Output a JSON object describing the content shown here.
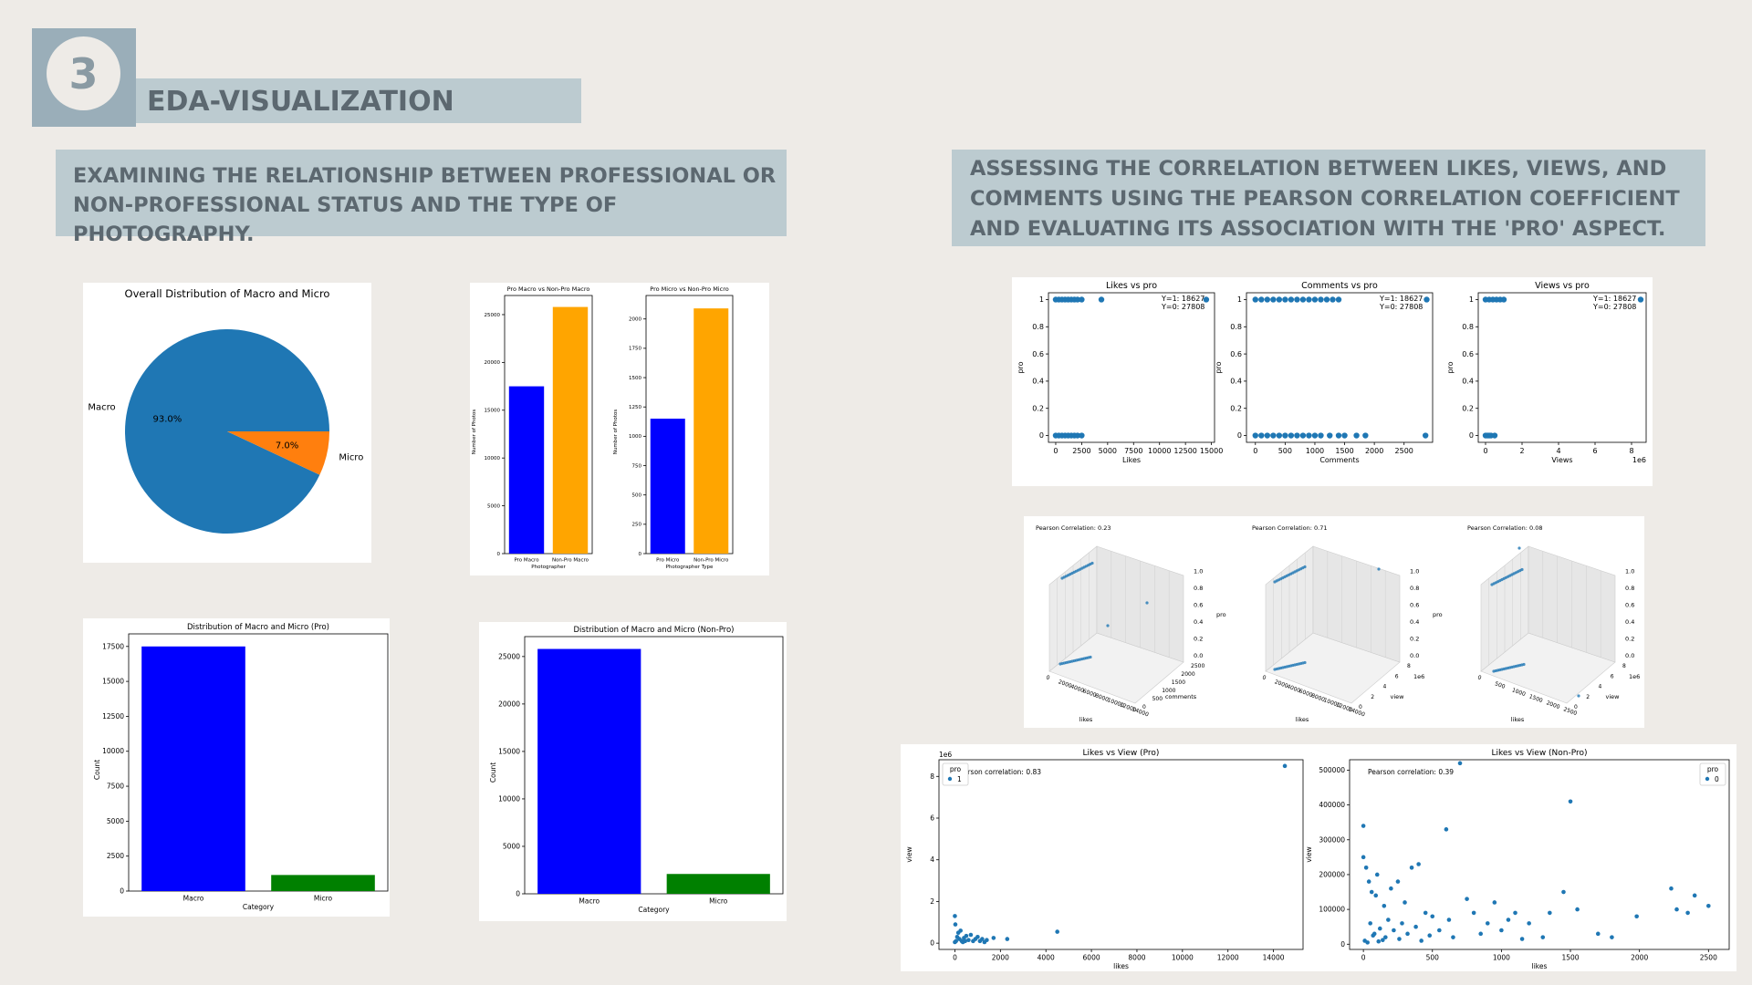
{
  "slide": {
    "number": "3",
    "title": "EDA-VISUALIZATION",
    "section_left": "EXAMINING THE RELATIONSHIP BETWEEN PROFESSIONAL OR NON-PROFESSIONAL STATUS AND THE TYPE OF PHOTOGRAPHY.",
    "section_right": "ASSESSING THE CORRELATION BETWEEN LIKES, VIEWS, AND COMMENTS USING THE PEARSON CORRELATION COEFFICIENT AND EVALUATING ITS ASSOCIATION WITH THE 'PRO' ASPECT."
  },
  "colors": {
    "blue": "#0000ff",
    "orange": "#ffa500",
    "green": "#008000",
    "mpl_blue": "#1f77b4",
    "mpl_orange": "#ff7f0e"
  },
  "chart_data": [
    {
      "id": "pie",
      "type": "pie",
      "title": "Overall Distribution of Macro and Micro",
      "labels": [
        "Macro",
        "Micro"
      ],
      "values": [
        93.0,
        7.0
      ],
      "pct_labels": [
        "93.0%",
        "7.0%"
      ],
      "colors": [
        "#1f77b4",
        "#ff7f0e"
      ]
    },
    {
      "id": "pro-macro",
      "type": "bar",
      "title": "Pro Macro vs Non-Pro Macro",
      "categories": [
        "Pro Macro",
        "Non-Pro Macro"
      ],
      "values": [
        17500,
        25800
      ],
      "colors": [
        "#0000ff",
        "#ffa500"
      ],
      "xlabel": "Photographer",
      "ylabel": "Number of Photos",
      "ylim": [
        0,
        27000
      ],
      "yticks": [
        0,
        5000,
        10000,
        15000,
        20000,
        25000
      ]
    },
    {
      "id": "pro-micro",
      "type": "bar",
      "title": "Pro Micro vs Non-Pro Micro",
      "categories": [
        "Pro Micro",
        "Non-Pro Micro"
      ],
      "values": [
        1150,
        2090
      ],
      "colors": [
        "#0000ff",
        "#ffa500"
      ],
      "xlabel": "Photographer Type",
      "ylabel": "Number of Photos",
      "ylim": [
        0,
        2200
      ],
      "yticks": [
        0,
        250,
        500,
        750,
        1000,
        1250,
        1500,
        1750,
        2000
      ]
    },
    {
      "id": "dist-pro",
      "type": "bar",
      "title": "Distribution of Macro and Micro (Pro)",
      "categories": [
        "Macro",
        "Micro"
      ],
      "values": [
        17500,
        1150
      ],
      "colors": [
        "#0000ff",
        "#008000"
      ],
      "xlabel": "Category",
      "ylabel": "Count",
      "ylim": [
        0,
        18400
      ],
      "yticks": [
        0,
        2500,
        5000,
        7500,
        10000,
        12500,
        15000,
        17500
      ]
    },
    {
      "id": "dist-nonpro",
      "type": "bar",
      "title": "Distribution of Macro and Micro (Non-Pro)",
      "categories": [
        "Macro",
        "Micro"
      ],
      "values": [
        25800,
        2090
      ],
      "colors": [
        "#0000ff",
        "#008000"
      ],
      "xlabel": "Category",
      "ylabel": "Count",
      "ylim": [
        0,
        27100
      ],
      "yticks": [
        0,
        5000,
        10000,
        15000,
        20000,
        25000
      ]
    },
    {
      "id": "likes-pro",
      "type": "scatter",
      "title": "Likes vs pro",
      "xlabel": "Likes",
      "ylabel": "pro",
      "xlim": [
        -700,
        15300
      ],
      "ylim": [
        -0.05,
        1.05
      ],
      "xticks": [
        0,
        2500,
        5000,
        7500,
        10000,
        12500,
        15000
      ],
      "yticks": [
        0.0,
        0.2,
        0.4,
        0.6,
        0.8,
        1.0
      ],
      "annotation": [
        "Y=1: 18627",
        "Y=0: 27808"
      ],
      "points": [
        [
          0,
          1
        ],
        [
          300,
          1
        ],
        [
          600,
          1
        ],
        [
          900,
          1
        ],
        [
          1200,
          1
        ],
        [
          1500,
          1
        ],
        [
          1800,
          1
        ],
        [
          2100,
          1
        ],
        [
          2500,
          1
        ],
        [
          4400,
          1
        ],
        [
          14500,
          1
        ],
        [
          0,
          0
        ],
        [
          300,
          0
        ],
        [
          600,
          0
        ],
        [
          900,
          0
        ],
        [
          1200,
          0
        ],
        [
          1500,
          0
        ],
        [
          1800,
          0
        ],
        [
          2100,
          0
        ],
        [
          2500,
          0
        ]
      ]
    },
    {
      "id": "comments-pro",
      "type": "scatter",
      "title": "Comments vs pro",
      "xlabel": "Comments",
      "ylabel": "pro",
      "xlim": [
        -150,
        2980
      ],
      "ylim": [
        -0.05,
        1.05
      ],
      "xticks": [
        0,
        500,
        1000,
        1500,
        2000,
        2500
      ],
      "yticks": [
        0.0,
        0.2,
        0.4,
        0.6,
        0.8,
        1.0
      ],
      "annotation": [
        "Y=1: 18627",
        "Y=0: 27808"
      ],
      "points": [
        [
          0,
          1
        ],
        [
          100,
          1
        ],
        [
          200,
          1
        ],
        [
          300,
          1
        ],
        [
          400,
          1
        ],
        [
          500,
          1
        ],
        [
          600,
          1
        ],
        [
          700,
          1
        ],
        [
          800,
          1
        ],
        [
          900,
          1
        ],
        [
          1000,
          1
        ],
        [
          1100,
          1
        ],
        [
          1200,
          1
        ],
        [
          1300,
          1
        ],
        [
          1400,
          1
        ],
        [
          2880,
          1
        ],
        [
          0,
          0
        ],
        [
          100,
          0
        ],
        [
          200,
          0
        ],
        [
          300,
          0
        ],
        [
          400,
          0
        ],
        [
          500,
          0
        ],
        [
          600,
          0
        ],
        [
          700,
          0
        ],
        [
          800,
          0
        ],
        [
          900,
          0
        ],
        [
          1000,
          0
        ],
        [
          1100,
          0
        ],
        [
          1250,
          0
        ],
        [
          1400,
          0
        ],
        [
          1500,
          0
        ],
        [
          1700,
          0
        ],
        [
          1850,
          0
        ],
        [
          2860,
          0
        ]
      ]
    },
    {
      "id": "views-pro",
      "type": "scatter",
      "title": "Views vs pro",
      "xlabel": "Views",
      "ylabel": "pro",
      "x_offset_label": "1e6",
      "xlim": [
        -0.4,
        8.8
      ],
      "ylim": [
        -0.05,
        1.05
      ],
      "xticks": [
        0,
        2,
        4,
        6,
        8
      ],
      "yticks": [
        0.0,
        0.2,
        0.4,
        0.6,
        0.8,
        1.0
      ],
      "annotation": [
        "Y=1: 18627",
        "Y=0: 27808"
      ],
      "points": [
        [
          0,
          1
        ],
        [
          0.2,
          1
        ],
        [
          0.4,
          1
        ],
        [
          0.6,
          1
        ],
        [
          0.8,
          1
        ],
        [
          1.0,
          1
        ],
        [
          8.5,
          1
        ],
        [
          0,
          0
        ],
        [
          0.1,
          0
        ],
        [
          0.2,
          0
        ],
        [
          0.3,
          0
        ],
        [
          0.5,
          0
        ]
      ]
    },
    {
      "id": "3d-plots",
      "type": "scatter",
      "titles": [
        "Pearson Correlation: 0.23",
        "Pearson Correlation: 0.71",
        "Pearson Correlation: 0.08"
      ],
      "zticks": [
        "0.0",
        "0.2",
        "0.4",
        "0.6",
        "0.8",
        "1.0"
      ],
      "zlabel": "pro",
      "x_labels": [
        "likes",
        "likes",
        "likes"
      ],
      "y_labels": [
        "comments",
        "view",
        "view"
      ],
      "x_ticks": [
        "0",
        "2000",
        "4000",
        "6000",
        "8000",
        "10000",
        "12000",
        "14000"
      ],
      "x_ticks_3": [
        "0",
        "500",
        "1000",
        "1500",
        "2000",
        "2500"
      ],
      "y_ticks_1": [
        "0",
        "500",
        "1000",
        "1500",
        "2000",
        "2500"
      ],
      "y_ticks_2": [
        "0",
        "2",
        "4",
        "6",
        "8"
      ],
      "y_offset": "1e6"
    },
    {
      "id": "likes-view-pro",
      "type": "scatter",
      "title": "Likes vs View (Pro)",
      "xlabel": "likes",
      "ylabel": "view",
      "y_offset_label": "1e6",
      "annotation": "Pearson correlation: 0.83",
      "legend_title": "pro",
      "legend_entries": [
        "1"
      ],
      "legend_position": "top-left",
      "xlim": [
        -700,
        15300
      ],
      "ylim": [
        -0.3,
        8.8
      ],
      "xticks": [
        0,
        2000,
        4000,
        6000,
        8000,
        10000,
        12000,
        14000
      ],
      "yticks": [
        0,
        2,
        4,
        6,
        8
      ],
      "points": [
        [
          0,
          0.05
        ],
        [
          50,
          0.1
        ],
        [
          100,
          0.3
        ],
        [
          150,
          0.5
        ],
        [
          0,
          1.3
        ],
        [
          20,
          0.9
        ],
        [
          200,
          0.2
        ],
        [
          300,
          0.1
        ],
        [
          400,
          0.25
        ],
        [
          500,
          0.35
        ],
        [
          600,
          0.15
        ],
        [
          700,
          0.4
        ],
        [
          800,
          0.1
        ],
        [
          900,
          0.2
        ],
        [
          1000,
          0.3
        ],
        [
          1100,
          0.1
        ],
        [
          1200,
          0.2
        ],
        [
          1300,
          0.05
        ],
        [
          1400,
          0.15
        ],
        [
          1700,
          0.25
        ],
        [
          2300,
          0.2
        ],
        [
          4500,
          0.55
        ],
        [
          14500,
          8.5
        ],
        [
          250,
          0.6
        ],
        [
          350,
          0.05
        ],
        [
          450,
          0.1
        ]
      ]
    },
    {
      "id": "likes-view-nonpro",
      "type": "scatter",
      "title": "Likes vs View (Non-Pro)",
      "xlabel": "likes",
      "ylabel": "view",
      "annotation": "Pearson correlation: 0.39",
      "legend_title": "pro",
      "legend_entries": [
        "0"
      ],
      "legend_position": "top-right",
      "xlim": [
        -100,
        2650
      ],
      "ylim": [
        -15000,
        530000
      ],
      "xticks": [
        0,
        500,
        1000,
        1500,
        2000,
        2500
      ],
      "yticks": [
        0,
        100000,
        200000,
        300000,
        400000,
        500000
      ],
      "points": [
        [
          0,
          340000
        ],
        [
          0,
          250000
        ],
        [
          20,
          220000
        ],
        [
          40,
          180000
        ],
        [
          60,
          150000
        ],
        [
          90,
          140000
        ],
        [
          100,
          200000
        ],
        [
          150,
          110000
        ],
        [
          200,
          160000
        ],
        [
          250,
          180000
        ],
        [
          300,
          120000
        ],
        [
          350,
          220000
        ],
        [
          400,
          230000
        ],
        [
          450,
          90000
        ],
        [
          500,
          80000
        ],
        [
          600,
          330000
        ],
        [
          620,
          70000
        ],
        [
          700,
          520000
        ],
        [
          750,
          130000
        ],
        [
          800,
          90000
        ],
        [
          900,
          60000
        ],
        [
          950,
          120000
        ],
        [
          1000,
          40000
        ],
        [
          1050,
          70000
        ],
        [
          1100,
          90000
        ],
        [
          1200,
          60000
        ],
        [
          1300,
          20000
        ],
        [
          1350,
          90000
        ],
        [
          1450,
          150000
        ],
        [
          1500,
          410000
        ],
        [
          1550,
          100000
        ],
        [
          1700,
          30000
        ],
        [
          1800,
          20000
        ],
        [
          1980,
          80000
        ],
        [
          2230,
          160000
        ],
        [
          2270,
          100000
        ],
        [
          2350,
          90000
        ],
        [
          2400,
          140000
        ],
        [
          2500,
          110000
        ],
        [
          50,
          60000
        ],
        [
          80,
          30000
        ],
        [
          120,
          45000
        ],
        [
          160,
          20000
        ],
        [
          180,
          70000
        ],
        [
          220,
          40000
        ],
        [
          260,
          15000
        ],
        [
          280,
          60000
        ],
        [
          320,
          30000
        ],
        [
          380,
          50000
        ],
        [
          420,
          10000
        ],
        [
          480,
          25000
        ],
        [
          550,
          40000
        ],
        [
          650,
          20000
        ],
        [
          850,
          30000
        ],
        [
          1150,
          15000
        ],
        [
          10,
          10000
        ],
        [
          30,
          5000
        ],
        [
          70,
          25000
        ],
        [
          110,
          8000
        ],
        [
          140,
          12000
        ]
      ]
    }
  ]
}
